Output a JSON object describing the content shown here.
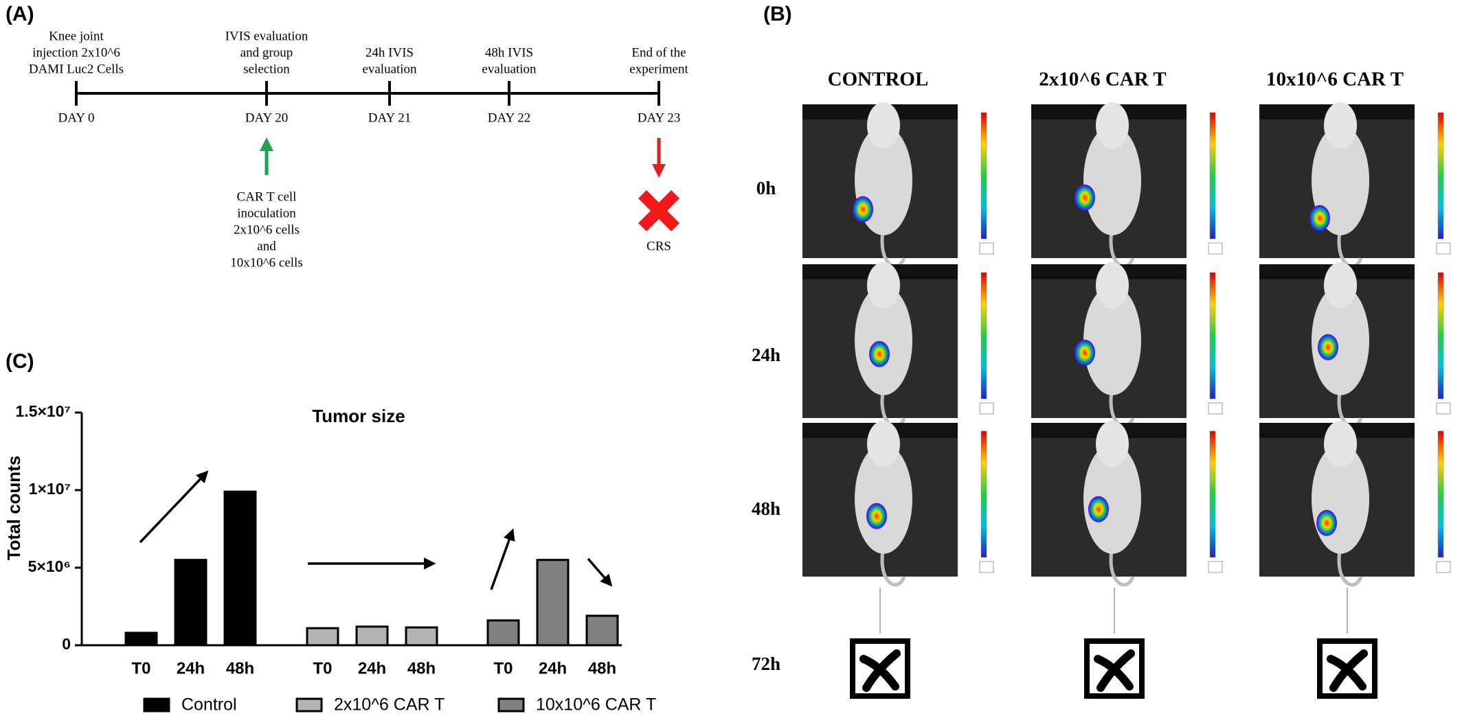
{
  "panel_a": {
    "label": "(A)",
    "events": [
      {
        "top": [
          "Knee joint",
          "injection 2x10^6",
          "DAMI Luc2 Cells"
        ],
        "day": "DAY 0"
      },
      {
        "top": [
          "IVIS evaluation",
          "and group",
          "selection"
        ],
        "day": "DAY 20"
      },
      {
        "top": [
          "24h IVIS",
          "evaluation"
        ],
        "day": "DAY 21"
      },
      {
        "top": [
          "48h IVIS",
          "evaluation"
        ],
        "day": "DAY 22"
      },
      {
        "top": [
          "End of the",
          "experiment"
        ],
        "day": "DAY 23"
      }
    ],
    "inoculation": [
      "CAR T cell",
      "inoculation",
      "2x10^6 cells",
      "and",
      "10x10^6 cells"
    ],
    "end_note": "CRS"
  },
  "panel_b": {
    "label": "(B)",
    "columns": [
      "CONTROL",
      "2x10^6 CAR T",
      "10x10^6 CAR T"
    ],
    "rows": [
      "0h",
      "24h",
      "48h",
      "72h"
    ]
  },
  "panel_c": {
    "label": "(C)"
  },
  "chart_data": {
    "type": "bar",
    "title": "Tumor size",
    "y_label": "Total counts",
    "categories": [
      "T0",
      "24h",
      "48h"
    ],
    "series": [
      {
        "name": "Control",
        "color": "#000000",
        "values": [
          800000,
          5500000,
          9900000
        ]
      },
      {
        "name": "2x10^6 CAR T",
        "color": "#b4b4b4",
        "values": [
          1100000,
          1200000,
          1150000
        ]
      },
      {
        "name": "10x10^6 CAR T",
        "color": "#808080",
        "values": [
          1600000,
          5500000,
          1900000
        ]
      }
    ],
    "ylim": [
      0,
      15000000
    ],
    "yticks": [
      0,
      {
        "value": 5000000,
        "label": "5×10⁶"
      },
      {
        "value": 10000000,
        "label": "1×10⁷"
      },
      {
        "value": 15000000,
        "label": "1.5×10⁷"
      }
    ],
    "grid": false
  }
}
